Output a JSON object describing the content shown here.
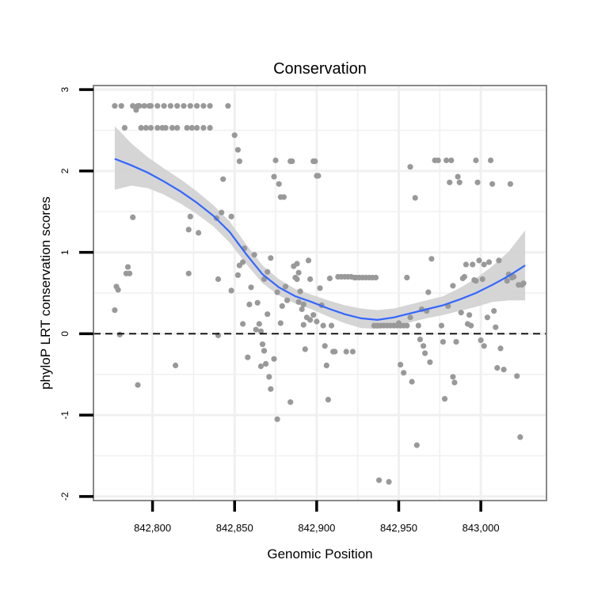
{
  "chart_data": {
    "type": "scatter",
    "title": "Conservation",
    "xlabel": "Genomic Position",
    "ylabel": "phyloP LRT conservation scores",
    "xlim": [
      842764,
      843040
    ],
    "ylim": [
      -2.05,
      3.05
    ],
    "x_ticks": [
      842800,
      842850,
      842900,
      842950,
      843000
    ],
    "x_tick_labels": [
      "842,800",
      "842,850",
      "842,900",
      "842,950",
      "843,000"
    ],
    "y_ticks": [
      -2,
      -1,
      0,
      1,
      2,
      3
    ],
    "y_tick_labels": [
      "-2",
      "-1",
      "0",
      "1",
      "2",
      "3"
    ],
    "reference_line": {
      "y": 0,
      "style": "dashed"
    },
    "colors": {
      "points": "#999999",
      "smooth": "#3366ff",
      "band": "#d0d0d0",
      "grid": "#f0f0f0",
      "frame": "#888888"
    },
    "smooth": {
      "x": [
        842777,
        842787,
        842797,
        842807,
        842817,
        842827,
        842837,
        842847,
        842857,
        842867,
        842877,
        842887,
        842897,
        842907,
        842917,
        842927,
        842937,
        842947,
        842957,
        842967,
        842977,
        842987,
        842997,
        843007,
        843017,
        843027
      ],
      "y": [
        2.15,
        2.07,
        1.98,
        1.87,
        1.75,
        1.61,
        1.45,
        1.25,
        0.98,
        0.73,
        0.57,
        0.46,
        0.39,
        0.31,
        0.24,
        0.19,
        0.17,
        0.2,
        0.25,
        0.3,
        0.35,
        0.42,
        0.5,
        0.6,
        0.71,
        0.84
      ],
      "lower": [
        1.77,
        1.82,
        1.79,
        1.71,
        1.6,
        1.47,
        1.32,
        1.12,
        0.86,
        0.62,
        0.47,
        0.37,
        0.3,
        0.21,
        0.13,
        0.07,
        0.06,
        0.09,
        0.14,
        0.19,
        0.23,
        0.28,
        0.33,
        0.39,
        0.41,
        0.41
      ],
      "upper": [
        2.55,
        2.34,
        2.17,
        2.03,
        1.9,
        1.75,
        1.58,
        1.38,
        1.1,
        0.84,
        0.67,
        0.55,
        0.48,
        0.41,
        0.35,
        0.31,
        0.29,
        0.31,
        0.36,
        0.41,
        0.46,
        0.56,
        0.68,
        0.83,
        1.01,
        1.27
      ]
    },
    "points": [
      [
        842777,
        2.8
      ],
      [
        842781,
        2.8
      ],
      [
        842788,
        2.8
      ],
      [
        842791,
        2.8
      ],
      [
        842795,
        2.8
      ],
      [
        842799,
        2.8
      ],
      [
        842803,
        2.8
      ],
      [
        842807,
        2.8
      ],
      [
        842811,
        2.8
      ],
      [
        842815,
        2.8
      ],
      [
        842819,
        2.8
      ],
      [
        842823,
        2.8
      ],
      [
        842827,
        2.8
      ],
      [
        842831,
        2.8
      ],
      [
        842835,
        2.8
      ],
      [
        842846,
        2.8
      ],
      [
        842790,
        2.75
      ],
      [
        842792,
        2.8
      ],
      [
        842798,
        2.8
      ],
      [
        842783,
        2.53
      ],
      [
        842793,
        2.53
      ],
      [
        842796,
        2.53
      ],
      [
        842799,
        2.53
      ],
      [
        842803,
        2.53
      ],
      [
        842806,
        2.53
      ],
      [
        842808,
        2.53
      ],
      [
        842812,
        2.53
      ],
      [
        842815,
        2.53
      ],
      [
        842821,
        2.53
      ],
      [
        842824,
        2.53
      ],
      [
        842827,
        2.53
      ],
      [
        842831,
        2.53
      ],
      [
        842835,
        2.53
      ],
      [
        842850,
        2.44
      ],
      [
        842852,
        2.26
      ],
      [
        842853,
        2.12
      ],
      [
        842843,
        1.9
      ],
      [
        842848,
        1.44
      ],
      [
        842842,
        1.49
      ],
      [
        842839,
        1.42
      ],
      [
        842823,
        1.44
      ],
      [
        842828,
        1.24
      ],
      [
        842822,
        1.28
      ],
      [
        842788,
        1.43
      ],
      [
        842785,
        0.82
      ],
      [
        842786,
        0.74
      ],
      [
        842784,
        0.74
      ],
      [
        842778,
        0.58
      ],
      [
        842779,
        0.54
      ],
      [
        842777,
        0.29
      ],
      [
        842780,
        -0.01
      ],
      [
        842791,
        -0.63
      ],
      [
        842814,
        -0.39
      ],
      [
        842822,
        0.74
      ],
      [
        842840,
        0.67
      ],
      [
        842840,
        -0.02
      ],
      [
        842848,
        0.53
      ],
      [
        842856,
        1.05
      ],
      [
        842855,
        0.88
      ],
      [
        842853,
        0.84
      ],
      [
        842852,
        0.72
      ],
      [
        842860,
        0.57
      ],
      [
        842862,
        0.97
      ],
      [
        842864,
        0.38
      ],
      [
        842865,
        0.12
      ],
      [
        842866,
        0.03
      ],
      [
        842867,
        -0.13
      ],
      [
        842868,
        -0.21
      ],
      [
        842869,
        -0.37
      ],
      [
        842870,
        0.24
      ],
      [
        842871,
        -0.53
      ],
      [
        842872,
        -0.68
      ],
      [
        842874,
        -0.31
      ],
      [
        842876,
        -1.05
      ],
      [
        842878,
        0.13
      ],
      [
        842855,
        0.12
      ],
      [
        842858,
        -0.29
      ],
      [
        842859,
        0.36
      ],
      [
        842863,
        0.05
      ],
      [
        842866,
        -0.4
      ],
      [
        842868,
        0.67
      ],
      [
        842870,
        0.76
      ],
      [
        842872,
        0.93
      ],
      [
        842874,
        1.93
      ],
      [
        842875,
        2.13
      ],
      [
        842877,
        1.84
      ],
      [
        842878,
        1.68
      ],
      [
        842880,
        1.68
      ],
      [
        842881,
        0.58
      ],
      [
        842884,
        2.12
      ],
      [
        842885,
        2.12
      ],
      [
        842886,
        0.83
      ],
      [
        842887,
        0.69
      ],
      [
        842888,
        0.86
      ],
      [
        842889,
        0.75
      ],
      [
        842890,
        0.52
      ],
      [
        842891,
        0.3
      ],
      [
        842892,
        0.11
      ],
      [
        842893,
        -0.19
      ],
      [
        842894,
        0.2
      ],
      [
        842895,
        0.9
      ],
      [
        842896,
        0.67
      ],
      [
        842898,
        2.12
      ],
      [
        842899,
        2.12
      ],
      [
        842900,
        1.94
      ],
      [
        842901,
        1.94
      ],
      [
        842902,
        0.56
      ],
      [
        842903,
        0.35
      ],
      [
        842904,
        0.1
      ],
      [
        842905,
        -0.15
      ],
      [
        842906,
        -0.39
      ],
      [
        842907,
        -0.81
      ],
      [
        842908,
        0.68
      ],
      [
        842909,
        0.1
      ],
      [
        842910,
        -0.22
      ],
      [
        842911,
        -0.22
      ],
      [
        842913,
        0.7
      ],
      [
        842915,
        0.7
      ],
      [
        842917,
        0.7
      ],
      [
        842918,
        -0.22
      ],
      [
        842919,
        0.7
      ],
      [
        842921,
        0.7
      ],
      [
        842922,
        -0.22
      ],
      [
        842923,
        0.69
      ],
      [
        842924,
        0.69
      ],
      [
        842926,
        0.69
      ],
      [
        842928,
        0.69
      ],
      [
        842930,
        0.69
      ],
      [
        842932,
        0.69
      ],
      [
        842934,
        0.69
      ],
      [
        842936,
        0.69
      ],
      [
        842889,
        0.39
      ],
      [
        842892,
        0.36
      ],
      [
        842896,
        0.17
      ],
      [
        842898,
        0.23
      ],
      [
        842900,
        0.15
      ],
      [
        842876,
        0.51
      ],
      [
        842879,
        0.34
      ],
      [
        842882,
        0.41
      ],
      [
        842884,
        -0.84
      ],
      [
        842888,
        0.67
      ],
      [
        842935,
        0.1
      ],
      [
        842937,
        0.1
      ],
      [
        842939,
        0.1
      ],
      [
        842941,
        0.1
      ],
      [
        842943,
        0.1
      ],
      [
        842945,
        0.1
      ],
      [
        842947,
        0.1
      ],
      [
        842949,
        0.1
      ],
      [
        842951,
        0.1
      ],
      [
        842953,
        0.1
      ],
      [
        842955,
        0.1
      ],
      [
        842938,
        -1.8
      ],
      [
        842944,
        -1.82
      ],
      [
        842947,
        0.1
      ],
      [
        842950,
        0.13
      ],
      [
        842951,
        -0.38
      ],
      [
        842953,
        -0.48
      ],
      [
        842955,
        0.69
      ],
      [
        842957,
        0.2
      ],
      [
        842958,
        -0.59
      ],
      [
        842960,
        1.67
      ],
      [
        842961,
        -1.37
      ],
      [
        842963,
        -0.07
      ],
      [
        842965,
        -0.15
      ],
      [
        842966,
        -0.24
      ],
      [
        842967,
        0.28
      ],
      [
        842968,
        0.51
      ],
      [
        842969,
        -0.35
      ],
      [
        842957,
        2.05
      ],
      [
        842962,
        0.1
      ],
      [
        842964,
        0.3
      ],
      [
        842970,
        0.92
      ],
      [
        842972,
        2.13
      ],
      [
        842974,
        2.13
      ],
      [
        842976,
        0.1
      ],
      [
        842977,
        -0.1
      ],
      [
        842978,
        -0.8
      ],
      [
        842979,
        2.13
      ],
      [
        842980,
        0.34
      ],
      [
        842981,
        1.86
      ],
      [
        842982,
        2.13
      ],
      [
        842983,
        0.59
      ],
      [
        842984,
        -0.6
      ],
      [
        842985,
        -0.1
      ],
      [
        842986,
        1.93
      ],
      [
        842987,
        1.86
      ],
      [
        842988,
        0.26
      ],
      [
        842989,
        0.68
      ],
      [
        842990,
        0.7
      ],
      [
        842991,
        0.85
      ],
      [
        842993,
        0.23
      ],
      [
        842994,
        0.1
      ],
      [
        842995,
        0.85
      ],
      [
        842996,
        0.66
      ],
      [
        842997,
        0.65
      ],
      [
        842998,
        1.86
      ],
      [
        842999,
        0.9
      ],
      [
        843000,
        -0.08
      ],
      [
        843001,
        0.67
      ],
      [
        843002,
        0.85
      ],
      [
        843004,
        0.2
      ],
      [
        843005,
        0.88
      ],
      [
        843006,
        2.13
      ],
      [
        843007,
        1.84
      ],
      [
        843008,
        0.28
      ],
      [
        843009,
        0.08
      ],
      [
        843010,
        -0.42
      ],
      [
        843011,
        0.9
      ],
      [
        843012,
        -0.18
      ],
      [
        843014,
        -0.44
      ],
      [
        843016,
        0.65
      ],
      [
        843017,
        0.73
      ],
      [
        843018,
        1.84
      ],
      [
        843019,
        0.69
      ],
      [
        843020,
        0.7
      ],
      [
        843022,
        -0.52
      ],
      [
        843023,
        0.6
      ],
      [
        843024,
        -1.27
      ],
      [
        843025,
        0.6
      ],
      [
        843026,
        0.62
      ],
      [
        842983,
        -0.53
      ],
      [
        842992,
        0.12
      ],
      [
        842997,
        2.13
      ],
      [
        843002,
        -0.15
      ]
    ]
  }
}
